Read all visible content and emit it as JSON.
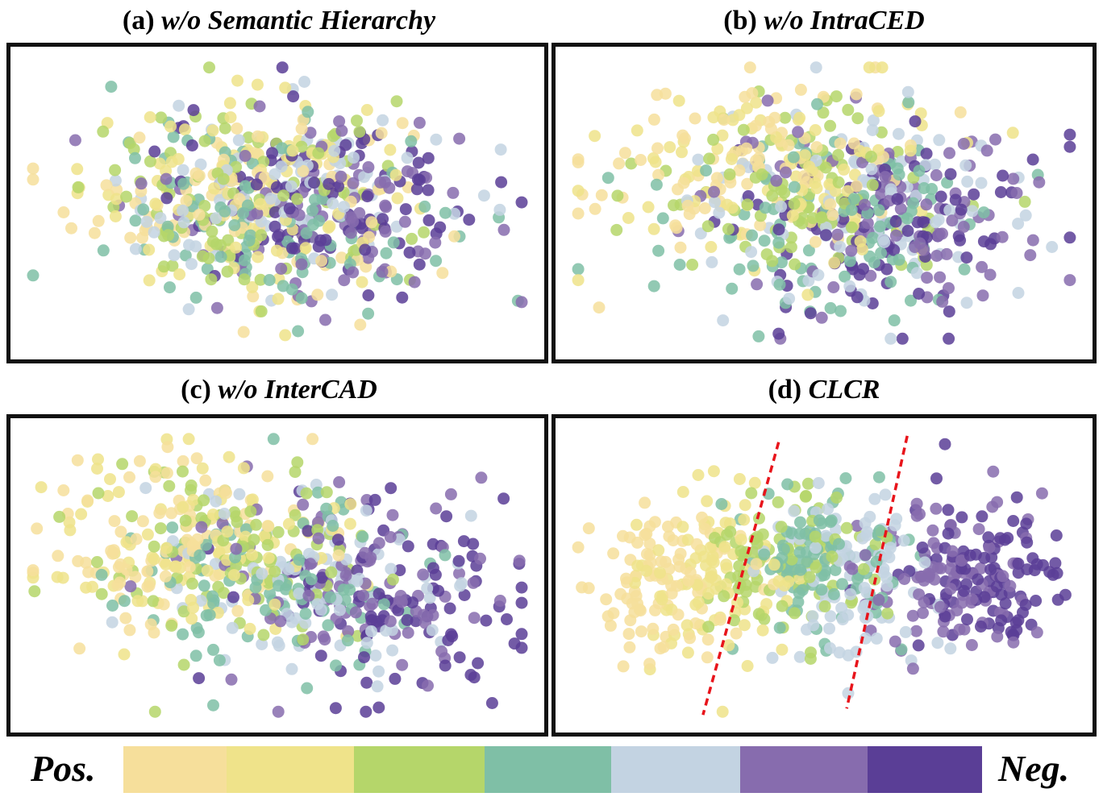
{
  "figure": {
    "palette": [
      "#f6df9b",
      "#efe38a",
      "#b5d66a",
      "#7fbfa6",
      "#c3d3e2",
      "#876cae",
      "#5a3e96"
    ],
    "legend": {
      "left_label": "Pos.",
      "right_label": "Neg."
    },
    "divider_color": "#e8141b"
  },
  "chart_data": [
    {
      "type": "scatter",
      "label": "(a)",
      "title": "w/o Semantic Hierarchy",
      "grid": false,
      "axes_visible": false,
      "classes": [
        "1",
        "2",
        "3",
        "4",
        "5",
        "6",
        "7"
      ],
      "points_per_class": 95,
      "xlim": [
        -3.4,
        3.4
      ],
      "ylim": [
        -2.3,
        2.3
      ],
      "class_centers_x": [
        -0.5,
        -0.4,
        -0.3,
        -0.1,
        0.0,
        0.5,
        0.7
      ],
      "class_centers_y": [
        0.1,
        0.2,
        0.0,
        -0.2,
        0.0,
        0.0,
        0.1
      ],
      "spread": [
        1.1,
        0.75
      ]
    },
    {
      "type": "scatter",
      "label": "(b)",
      "title": "w/o IntraCED",
      "grid": false,
      "axes_visible": false,
      "classes": [
        "1",
        "2",
        "3",
        "4",
        "5",
        "6",
        "7"
      ],
      "points_per_class": 95,
      "xlim": [
        -3.4,
        3.4
      ],
      "ylim": [
        -2.3,
        2.3
      ],
      "class_centers_x": [
        -1.0,
        -0.6,
        -0.3,
        0.1,
        0.4,
        0.7,
        0.9
      ],
      "class_centers_y": [
        0.6,
        0.5,
        0.2,
        -0.3,
        0.0,
        -0.2,
        -0.5
      ],
      "spread": [
        1.1,
        0.75
      ]
    },
    {
      "type": "scatter",
      "label": "(c)",
      "title": "w/o InterCAD",
      "grid": false,
      "axes_visible": false,
      "classes": [
        "1",
        "2",
        "3",
        "4",
        "5",
        "6",
        "7"
      ],
      "points_per_class": 95,
      "xlim": [
        -3.4,
        3.4
      ],
      "ylim": [
        -2.3,
        2.3
      ],
      "class_centers_x": [
        -1.4,
        -1.0,
        -0.6,
        0.0,
        0.4,
        0.9,
        1.3
      ],
      "class_centers_y": [
        0.5,
        0.4,
        0.3,
        -0.2,
        -0.1,
        -0.2,
        -0.3
      ],
      "spread": [
        1.0,
        0.75
      ]
    },
    {
      "type": "scatter",
      "label": "(d)",
      "title": "CLCR",
      "grid": false,
      "axes_visible": false,
      "classes": [
        "1",
        "2",
        "3",
        "4",
        "5",
        "6",
        "7"
      ],
      "points_per_class": 95,
      "xlim": [
        -3.4,
        3.4
      ],
      "ylim": [
        -2.3,
        2.3
      ],
      "class_centers_x": [
        -2.2,
        -1.4,
        -0.5,
        0.0,
        0.4,
        1.6,
        2.1
      ],
      "class_centers_y": [
        -0.2,
        0.0,
        0.2,
        0.1,
        -0.1,
        -0.1,
        0.0
      ],
      "spread": [
        0.55,
        0.65
      ],
      "dividers": [
        {
          "x1": -0.6,
          "y1": 2.1,
          "x2": -1.6,
          "y2": -2.2
        },
        {
          "x1": 1.1,
          "y1": 2.2,
          "x2": 0.3,
          "y2": -2.1
        }
      ]
    }
  ]
}
